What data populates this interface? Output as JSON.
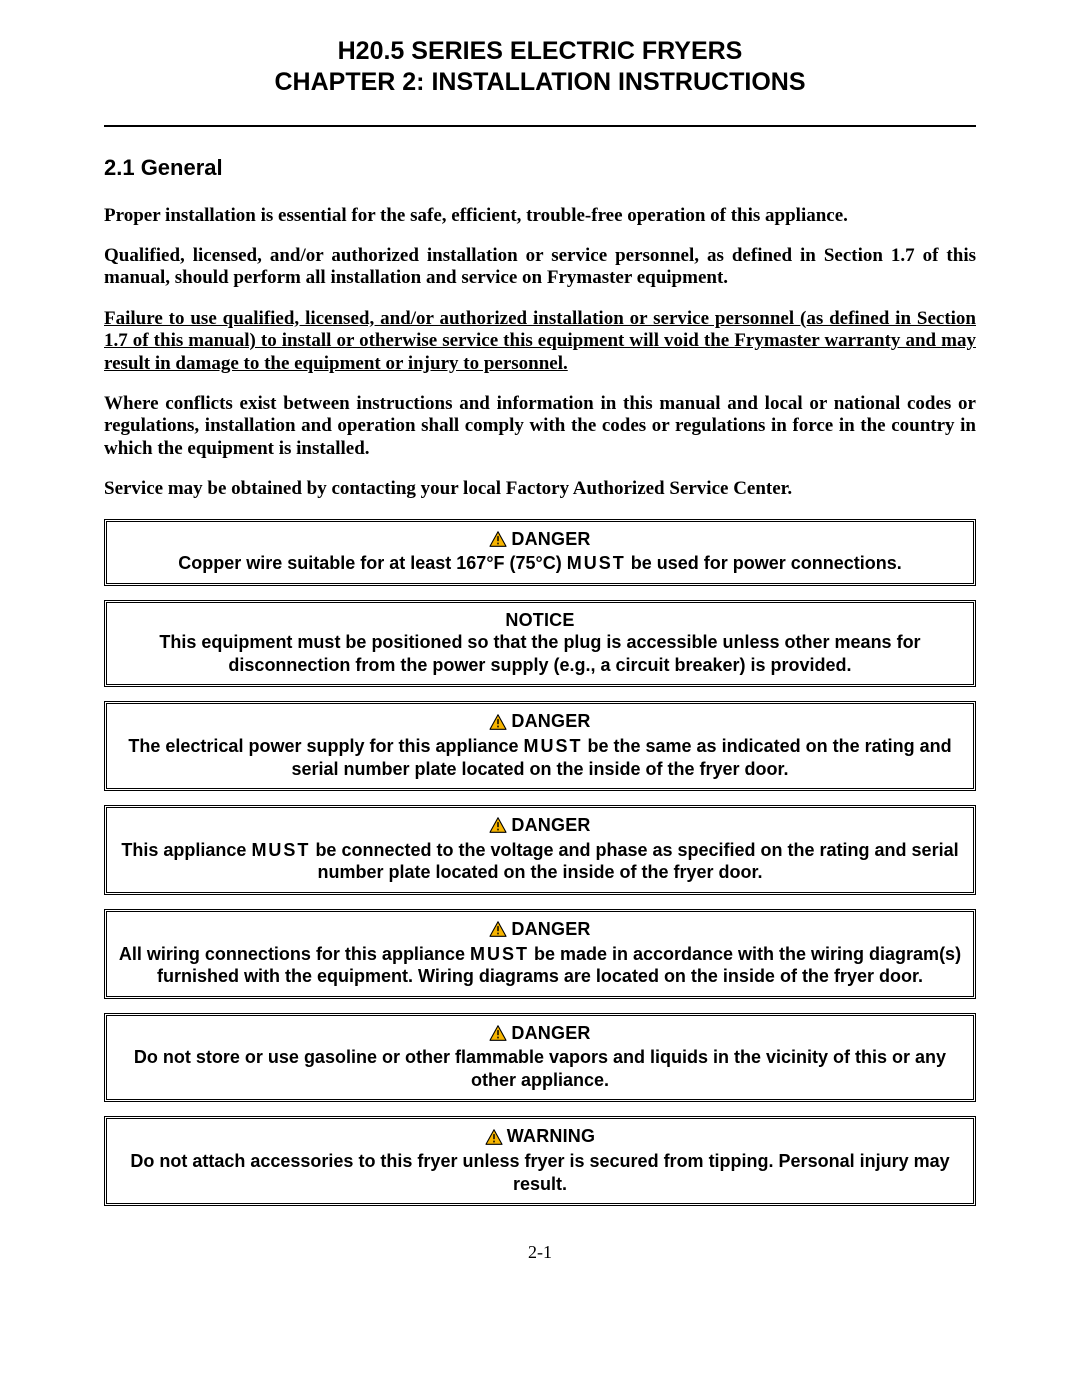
{
  "typography": {
    "title_font": "Arial",
    "title_size_pt": 19,
    "body_font": "Times New Roman",
    "body_size_pt": 14,
    "callout_font": "Arial",
    "callout_size_pt": 13.5
  },
  "colors": {
    "text": "#000000",
    "background": "#ffffff",
    "rule": "#000000",
    "hazard_fill": "#f7b500",
    "hazard_stroke": "#000000"
  },
  "title": {
    "line1": "H20.5 SERIES ELECTRIC FRYERS",
    "line2": "CHAPTER 2:  INSTALLATION INSTRUCTIONS"
  },
  "section": {
    "heading": "2.1  General"
  },
  "paragraphs": {
    "p1": "Proper installation is essential for the safe, efficient, trouble-free operation of this appliance.",
    "p2": "Qualified, licensed, and/or authorized installation or service personnel, as defined in Section 1.7 of this manual, should perform all installation and service on Frymaster equipment.",
    "p3": "Failure to use qualified, licensed, and/or authorized installation or service personnel (as defined in Section 1.7 of this manual) to install or otherwise service this equipment will void the Frymaster warranty and may result in damage to the equipment or injury to personnel.",
    "p4": "Where conflicts exist between instructions and information in this manual and local or national codes or regulations, installation and operation shall comply with the codes or regulations in force in the country in which the equipment is installed.",
    "p5": "Service may be obtained by contacting your local Factory Authorized Service Center."
  },
  "must_word": "MUST",
  "callouts": [
    {
      "label": "DANGER",
      "has_icon": true,
      "pre": "Copper wire suitable for at least 167°F (75°C) ",
      "post": " be used for power connections."
    },
    {
      "label": "NOTICE",
      "has_icon": false,
      "pre": "This equipment must be positioned so that the plug is accessible unless other means for disconnection from the power supply (e.g., a circuit breaker) is provided.",
      "post": ""
    },
    {
      "label": "DANGER",
      "has_icon": true,
      "pre": "The electrical power supply for this appliance ",
      "post": " be the same as indicated on the rating and serial number plate located on the inside of the fryer door."
    },
    {
      "label": "DANGER",
      "has_icon": true,
      "pre": "This appliance ",
      "post": " be connected to the voltage and phase as specified on the rating and serial number plate located on the inside of the fryer door."
    },
    {
      "label": "DANGER",
      "has_icon": true,
      "pre": "All wiring connections for this appliance ",
      "post": " be made in accordance with the wiring diagram(s) furnished with the equipment.  Wiring diagrams are located on the inside of the fryer door."
    },
    {
      "label": "DANGER",
      "has_icon": true,
      "pre": "Do not store or use gasoline or other flammable vapors and liquids in the vicinity of this or any other appliance.",
      "post": ""
    },
    {
      "label": "WARNING",
      "has_icon": true,
      "pre": "Do not attach accessories to this fryer unless fryer is secured from tipping. Personal injury may result.",
      "post": ""
    }
  ],
  "footer": "2-1"
}
